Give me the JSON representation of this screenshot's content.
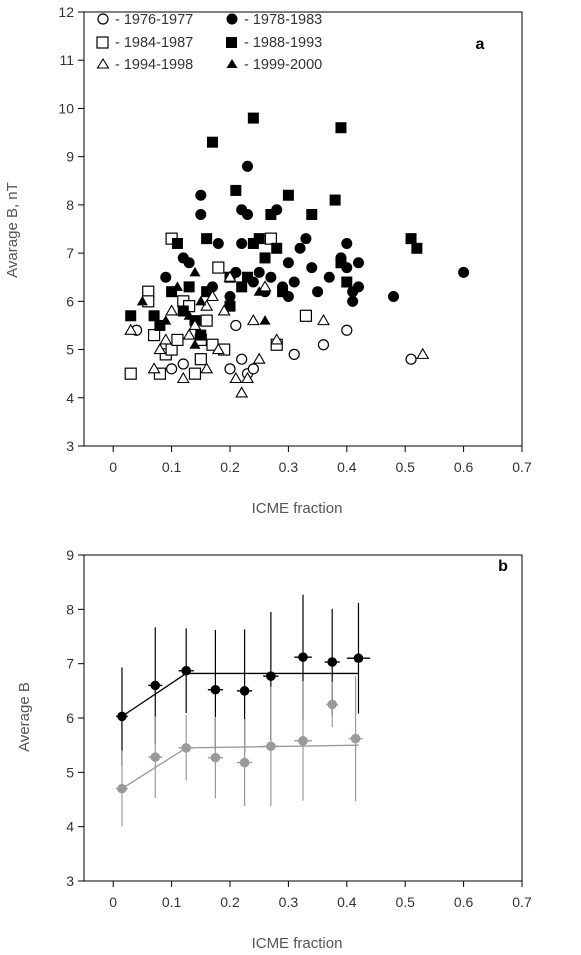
{
  "chart_data": [
    {
      "type": "scatter",
      "panel_label": "a",
      "xlabel": "ICME fraction",
      "ylabel": "Avarage B, nT",
      "xlim": [
        -0.05,
        0.7
      ],
      "ylim": [
        3,
        12
      ],
      "xticks": [
        "0",
        "0.1",
        "0.2",
        "0.3",
        "0.4",
        "0.5",
        "0.6",
        "0.7"
      ],
      "yticks": [
        "3",
        "4",
        "5",
        "6",
        "7",
        "8",
        "9",
        "10",
        "11",
        "12"
      ],
      "legend_position": "top-left",
      "series": [
        {
          "name": "- 1976-1977",
          "marker": "circle-open",
          "points": [
            [
              0.04,
              5.4
            ],
            [
              0.1,
              4.6
            ],
            [
              0.12,
              4.7
            ],
            [
              0.2,
              4.6
            ],
            [
              0.21,
              5.5
            ],
            [
              0.22,
              4.8
            ],
            [
              0.23,
              4.5
            ],
            [
              0.24,
              4.6
            ],
            [
              0.28,
              5.1
            ],
            [
              0.31,
              4.9
            ],
            [
              0.36,
              5.1
            ],
            [
              0.4,
              5.4
            ],
            [
              0.51,
              4.8
            ]
          ]
        },
        {
          "name": "- 1978-1983",
          "marker": "circle-filled",
          "points": [
            [
              0.09,
              6.5
            ],
            [
              0.12,
              6.9
            ],
            [
              0.13,
              6.8
            ],
            [
              0.15,
              8.2
            ],
            [
              0.15,
              7.8
            ],
            [
              0.17,
              6.3
            ],
            [
              0.18,
              7.2
            ],
            [
              0.2,
              6.1
            ],
            [
              0.21,
              6.6
            ],
            [
              0.22,
              7.2
            ],
            [
              0.22,
              7.9
            ],
            [
              0.23,
              7.8
            ],
            [
              0.23,
              8.8
            ],
            [
              0.24,
              6.4
            ],
            [
              0.25,
              6.6
            ],
            [
              0.26,
              6.2
            ],
            [
              0.27,
              6.5
            ],
            [
              0.28,
              7.9
            ],
            [
              0.29,
              6.3
            ],
            [
              0.3,
              6.8
            ],
            [
              0.3,
              6.1
            ],
            [
              0.31,
              6.4
            ],
            [
              0.32,
              7.1
            ],
            [
              0.33,
              7.3
            ],
            [
              0.34,
              6.7
            ],
            [
              0.35,
              6.2
            ],
            [
              0.37,
              6.5
            ],
            [
              0.39,
              6.9
            ],
            [
              0.4,
              6.7
            ],
            [
              0.4,
              7.2
            ],
            [
              0.41,
              6.2
            ],
            [
              0.41,
              6.0
            ],
            [
              0.42,
              6.8
            ],
            [
              0.42,
              6.3
            ],
            [
              0.48,
              6.1
            ],
            [
              0.6,
              6.6
            ]
          ]
        },
        {
          "name": "- 1984-1987",
          "marker": "square-open",
          "points": [
            [
              0.03,
              4.5
            ],
            [
              0.06,
              6.2
            ],
            [
              0.06,
              6.0
            ],
            [
              0.07,
              5.3
            ],
            [
              0.08,
              4.5
            ],
            [
              0.09,
              4.9
            ],
            [
              0.1,
              5.0
            ],
            [
              0.1,
              7.3
            ],
            [
              0.11,
              5.2
            ],
            [
              0.12,
              6.0
            ],
            [
              0.13,
              5.9
            ],
            [
              0.14,
              4.5
            ],
            [
              0.15,
              4.8
            ],
            [
              0.15,
              5.2
            ],
            [
              0.16,
              5.6
            ],
            [
              0.17,
              5.1
            ],
            [
              0.18,
              6.7
            ],
            [
              0.19,
              5.0
            ],
            [
              0.27,
              7.3
            ],
            [
              0.28,
              5.1
            ],
            [
              0.33,
              5.7
            ]
          ]
        },
        {
          "name": "- 1988-1993",
          "marker": "square-filled",
          "points": [
            [
              0.03,
              5.7
            ],
            [
              0.07,
              5.7
            ],
            [
              0.08,
              5.5
            ],
            [
              0.1,
              6.2
            ],
            [
              0.11,
              7.2
            ],
            [
              0.12,
              5.8
            ],
            [
              0.13,
              6.3
            ],
            [
              0.14,
              5.6
            ],
            [
              0.15,
              5.3
            ],
            [
              0.16,
              7.3
            ],
            [
              0.16,
              6.2
            ],
            [
              0.17,
              9.3
            ],
            [
              0.2,
              5.9
            ],
            [
              0.2,
              6.5
            ],
            [
              0.21,
              8.3
            ],
            [
              0.22,
              6.3
            ],
            [
              0.23,
              6.5
            ],
            [
              0.24,
              7.2
            ],
            [
              0.24,
              9.8
            ],
            [
              0.25,
              7.3
            ],
            [
              0.26,
              6.9
            ],
            [
              0.27,
              7.8
            ],
            [
              0.28,
              7.1
            ],
            [
              0.29,
              6.2
            ],
            [
              0.3,
              8.2
            ],
            [
              0.34,
              7.8
            ],
            [
              0.38,
              8.1
            ],
            [
              0.39,
              6.8
            ],
            [
              0.39,
              9.6
            ],
            [
              0.4,
              6.4
            ],
            [
              0.51,
              7.3
            ],
            [
              0.52,
              7.1
            ]
          ]
        },
        {
          "name": "- 1994-1998",
          "marker": "triangle-open",
          "points": [
            [
              0.03,
              5.4
            ],
            [
              0.07,
              4.6
            ],
            [
              0.08,
              5.0
            ],
            [
              0.09,
              5.2
            ],
            [
              0.1,
              5.8
            ],
            [
              0.12,
              4.4
            ],
            [
              0.13,
              5.3
            ],
            [
              0.14,
              5.5
            ],
            [
              0.16,
              5.9
            ],
            [
              0.16,
              4.6
            ],
            [
              0.17,
              6.1
            ],
            [
              0.18,
              5.0
            ],
            [
              0.19,
              5.8
            ],
            [
              0.2,
              6.5
            ],
            [
              0.21,
              4.4
            ],
            [
              0.22,
              4.1
            ],
            [
              0.23,
              4.4
            ],
            [
              0.24,
              5.6
            ],
            [
              0.25,
              4.8
            ],
            [
              0.26,
              6.3
            ],
            [
              0.28,
              5.2
            ],
            [
              0.36,
              5.6
            ],
            [
              0.53,
              4.9
            ]
          ]
        },
        {
          "name": "- 1999-2000",
          "marker": "triangle-filled",
          "points": [
            [
              0.05,
              6.0
            ],
            [
              0.09,
              5.6
            ],
            [
              0.11,
              6.3
            ],
            [
              0.13,
              5.7
            ],
            [
              0.14,
              5.1
            ],
            [
              0.14,
              6.6
            ],
            [
              0.15,
              6.0
            ],
            [
              0.25,
              6.2
            ],
            [
              0.26,
              5.6
            ]
          ]
        }
      ]
    },
    {
      "type": "line",
      "panel_label": "b",
      "xlabel": "ICME fraction",
      "ylabel": "Average B",
      "xlim": [
        -0.05,
        0.7
      ],
      "ylim": [
        3,
        9
      ],
      "xticks": [
        "0",
        "0.1",
        "0.2",
        "0.3",
        "0.4",
        "0.5",
        "0.6",
        "0.7"
      ],
      "yticks": [
        "3",
        "4",
        "5",
        "6",
        "7",
        "8",
        "9"
      ],
      "colors": {
        "black_series": "#000000",
        "gray_series": "#9a9a9a"
      },
      "points": [
        {
          "color": "black",
          "x": 0.015,
          "y": 6.03,
          "yerr": 0.9,
          "xerr": 0.01
        },
        {
          "color": "black",
          "x": 0.072,
          "y": 6.6,
          "yerr": 1.07,
          "xerr": 0.012
        },
        {
          "color": "black",
          "x": 0.125,
          "y": 6.87,
          "yerr": 0.78,
          "xerr": 0.013
        },
        {
          "color": "black",
          "x": 0.175,
          "y": 6.52,
          "yerr": 1.1,
          "xerr": 0.013
        },
        {
          "color": "black",
          "x": 0.225,
          "y": 6.5,
          "yerr": 1.13,
          "xerr": 0.013
        },
        {
          "color": "black",
          "x": 0.27,
          "y": 6.77,
          "yerr": 1.18,
          "xerr": 0.013
        },
        {
          "color": "black",
          "x": 0.325,
          "y": 7.12,
          "yerr": 1.15,
          "xerr": 0.015
        },
        {
          "color": "black",
          "x": 0.375,
          "y": 7.03,
          "yerr": 0.98,
          "xerr": 0.013
        },
        {
          "color": "black",
          "x": 0.42,
          "y": 7.1,
          "yerr": 1.02,
          "xerr": 0.02
        },
        {
          "color": "gray",
          "x": 0.015,
          "y": 4.7,
          "yerr": 0.7,
          "xerr": 0.01
        },
        {
          "color": "gray",
          "x": 0.072,
          "y": 5.28,
          "yerr": 0.75,
          "xerr": 0.012
        },
        {
          "color": "gray",
          "x": 0.125,
          "y": 5.45,
          "yerr": 0.6,
          "xerr": 0.013
        },
        {
          "color": "gray",
          "x": 0.175,
          "y": 5.27,
          "yerr": 0.75,
          "xerr": 0.013
        },
        {
          "color": "gray",
          "x": 0.225,
          "y": 5.18,
          "yerr": 0.8,
          "xerr": 0.013
        },
        {
          "color": "gray",
          "x": 0.27,
          "y": 5.48,
          "yerr": 1.1,
          "xerr": 0.013
        },
        {
          "color": "gray",
          "x": 0.325,
          "y": 5.58,
          "yerr": 1.1,
          "xerr": 0.015
        },
        {
          "color": "gray",
          "x": 0.375,
          "y": 6.25,
          "yerr": 0.42,
          "xerr": 0.01
        },
        {
          "color": "gray",
          "x": 0.415,
          "y": 5.62,
          "yerr": 1.15,
          "xerr": 0.012
        }
      ],
      "fit_lines": [
        {
          "color": "black",
          "points": [
            [
              0.015,
              6.03
            ],
            [
              0.125,
              6.82
            ],
            [
              0.42,
              6.82
            ]
          ]
        },
        {
          "color": "gray",
          "points": [
            [
              0.015,
              4.7
            ],
            [
              0.125,
              5.45
            ],
            [
              0.42,
              5.5
            ]
          ]
        }
      ]
    }
  ]
}
